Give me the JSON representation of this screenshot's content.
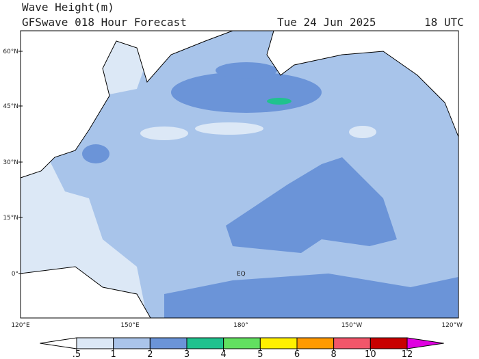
{
  "header": {
    "title": "Wave Height(m)",
    "subtitle": "GFSwave 018 Hour Forecast",
    "date": "Tue 24 Jun 2025",
    "time": "18 UTC"
  },
  "map": {
    "lat_labels": [
      "60°N",
      "45°N",
      "30°N",
      "15°N",
      "0°"
    ],
    "lon_labels": [
      "120°E",
      "150°E",
      "180°",
      "150°W",
      "120°W"
    ],
    "annotation": "EQ"
  },
  "colorbar": {
    "ticks": [
      {
        "value": 0.5,
        "label": ".5"
      },
      1,
      2,
      3,
      4,
      5,
      6,
      8,
      10,
      12
    ],
    "colors": [
      "#ffffff",
      "#dce8f6",
      "#aac4ea",
      "#6b94d8",
      "#20c28e",
      "#62e060",
      "#fff000",
      "#ff9a00",
      "#f2566a",
      "#c80000",
      "#e000e0"
    ]
  }
}
